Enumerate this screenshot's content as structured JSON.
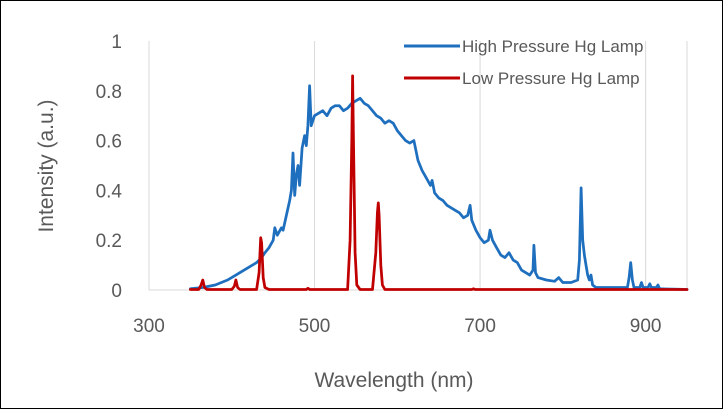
{
  "chart_data": {
    "type": "line",
    "title": "",
    "xlabel": "Wavelength (nm)",
    "ylabel": "Intensity (a.u.)",
    "xlim": [
      300,
      950
    ],
    "ylim": [
      0,
      1
    ],
    "xticks": [
      300,
      500,
      700,
      900
    ],
    "yticks": [
      0,
      0.2,
      0.4,
      0.6,
      0.8,
      1
    ],
    "ytick_labels": [
      "0",
      "0.2",
      "0.4",
      "0.6",
      "0.8",
      "1"
    ],
    "grid": "vertical",
    "legend": "top-right",
    "series": [
      {
        "name": "High Pressure Hg Lamp",
        "color": "#1F6FBF",
        "points": [
          [
            350,
            0.005
          ],
          [
            365,
            0.01
          ],
          [
            380,
            0.02
          ],
          [
            395,
            0.04
          ],
          [
            405,
            0.06
          ],
          [
            410,
            0.07
          ],
          [
            420,
            0.09
          ],
          [
            430,
            0.11
          ],
          [
            436,
            0.13
          ],
          [
            440,
            0.15
          ],
          [
            445,
            0.17
          ],
          [
            450,
            0.2
          ],
          [
            452,
            0.25
          ],
          [
            455,
            0.22
          ],
          [
            460,
            0.25
          ],
          [
            462,
            0.24
          ],
          [
            466,
            0.3
          ],
          [
            470,
            0.36
          ],
          [
            472,
            0.4
          ],
          [
            474,
            0.55
          ],
          [
            476,
            0.38
          ],
          [
            478,
            0.46
          ],
          [
            480,
            0.5
          ],
          [
            482,
            0.42
          ],
          [
            485,
            0.57
          ],
          [
            488,
            0.62
          ],
          [
            490,
            0.58
          ],
          [
            492,
            0.66
          ],
          [
            494,
            0.82
          ],
          [
            496,
            0.66
          ],
          [
            500,
            0.7
          ],
          [
            505,
            0.71
          ],
          [
            510,
            0.72
          ],
          [
            515,
            0.7
          ],
          [
            520,
            0.73
          ],
          [
            525,
            0.74
          ],
          [
            530,
            0.74
          ],
          [
            535,
            0.72
          ],
          [
            540,
            0.73
          ],
          [
            545,
            0.75
          ],
          [
            550,
            0.76
          ],
          [
            555,
            0.77
          ],
          [
            560,
            0.75
          ],
          [
            565,
            0.74
          ],
          [
            570,
            0.72
          ],
          [
            575,
            0.7
          ],
          [
            580,
            0.69
          ],
          [
            585,
            0.67
          ],
          [
            590,
            0.68
          ],
          [
            595,
            0.67
          ],
          [
            600,
            0.64
          ],
          [
            605,
            0.62
          ],
          [
            610,
            0.6
          ],
          [
            615,
            0.59
          ],
          [
            620,
            0.6
          ],
          [
            625,
            0.52
          ],
          [
            630,
            0.48
          ],
          [
            635,
            0.45
          ],
          [
            640,
            0.42
          ],
          [
            642,
            0.44
          ],
          [
            645,
            0.39
          ],
          [
            650,
            0.37
          ],
          [
            655,
            0.36
          ],
          [
            660,
            0.34
          ],
          [
            665,
            0.33
          ],
          [
            670,
            0.32
          ],
          [
            675,
            0.31
          ],
          [
            680,
            0.29
          ],
          [
            685,
            0.3
          ],
          [
            688,
            0.34
          ],
          [
            690,
            0.28
          ],
          [
            695,
            0.24
          ],
          [
            700,
            0.21
          ],
          [
            705,
            0.19
          ],
          [
            710,
            0.2
          ],
          [
            712,
            0.24
          ],
          [
            715,
            0.2
          ],
          [
            720,
            0.17
          ],
          [
            725,
            0.14
          ],
          [
            730,
            0.13
          ],
          [
            735,
            0.15
          ],
          [
            740,
            0.12
          ],
          [
            745,
            0.11
          ],
          [
            750,
            0.08
          ],
          [
            755,
            0.07
          ],
          [
            760,
            0.06
          ],
          [
            764,
            0.08
          ],
          [
            765,
            0.18
          ],
          [
            767,
            0.07
          ],
          [
            770,
            0.05
          ],
          [
            780,
            0.04
          ],
          [
            790,
            0.035
          ],
          [
            795,
            0.05
          ],
          [
            800,
            0.03
          ],
          [
            810,
            0.03
          ],
          [
            818,
            0.04
          ],
          [
            820,
            0.12
          ],
          [
            822,
            0.41
          ],
          [
            824,
            0.2
          ],
          [
            826,
            0.14
          ],
          [
            828,
            0.1
          ],
          [
            830,
            0.06
          ],
          [
            832,
            0.04
          ],
          [
            834,
            0.06
          ],
          [
            836,
            0.02
          ],
          [
            840,
            0.01
          ],
          [
            850,
            0.01
          ],
          [
            860,
            0.01
          ],
          [
            870,
            0.01
          ],
          [
            878,
            0.01
          ],
          [
            880,
            0.05
          ],
          [
            882,
            0.11
          ],
          [
            884,
            0.04
          ],
          [
            886,
            0.01
          ],
          [
            893,
            0.01
          ],
          [
            895,
            0.03
          ],
          [
            897,
            0.01
          ],
          [
            903,
            0.01
          ],
          [
            905,
            0.025
          ],
          [
            907,
            0.01
          ],
          [
            913,
            0.01
          ],
          [
            915,
            0.02
          ],
          [
            917,
            0.005
          ],
          [
            925,
            0.004
          ],
          [
            940,
            0.003
          ],
          [
            950,
            0.002
          ]
        ]
      },
      {
        "name": "Low Pressure Hg Lamp",
        "color": "#C00000",
        "points": [
          [
            350,
            0.002
          ],
          [
            360,
            0.002
          ],
          [
            363,
            0.02
          ],
          [
            365,
            0.04
          ],
          [
            367,
            0.01
          ],
          [
            370,
            0.002
          ],
          [
            400,
            0.002
          ],
          [
            403,
            0.015
          ],
          [
            405,
            0.04
          ],
          [
            407,
            0.01
          ],
          [
            410,
            0.002
          ],
          [
            430,
            0.002
          ],
          [
            433,
            0.07
          ],
          [
            435,
            0.21
          ],
          [
            436,
            0.19
          ],
          [
            438,
            0.05
          ],
          [
            440,
            0.01
          ],
          [
            445,
            0.002
          ],
          [
            490,
            0.002
          ],
          [
            492,
            0.007
          ],
          [
            494,
            0.002
          ],
          [
            540,
            0.002
          ],
          [
            543,
            0.2
          ],
          [
            545,
            0.6
          ],
          [
            546,
            0.86
          ],
          [
            547,
            0.62
          ],
          [
            549,
            0.15
          ],
          [
            551,
            0.02
          ],
          [
            555,
            0.002
          ],
          [
            570,
            0.002
          ],
          [
            574,
            0.15
          ],
          [
            576,
            0.31
          ],
          [
            577,
            0.35
          ],
          [
            578,
            0.3
          ],
          [
            580,
            0.1
          ],
          [
            582,
            0.02
          ],
          [
            585,
            0.002
          ],
          [
            690,
            0.002
          ],
          [
            692,
            0.005
          ],
          [
            694,
            0.002
          ],
          [
            700,
            0.002
          ],
          [
            750,
            0.002
          ],
          [
            800,
            0.002
          ],
          [
            850,
            0.002
          ],
          [
            900,
            0.002
          ],
          [
            950,
            0.002
          ]
        ]
      }
    ]
  }
}
